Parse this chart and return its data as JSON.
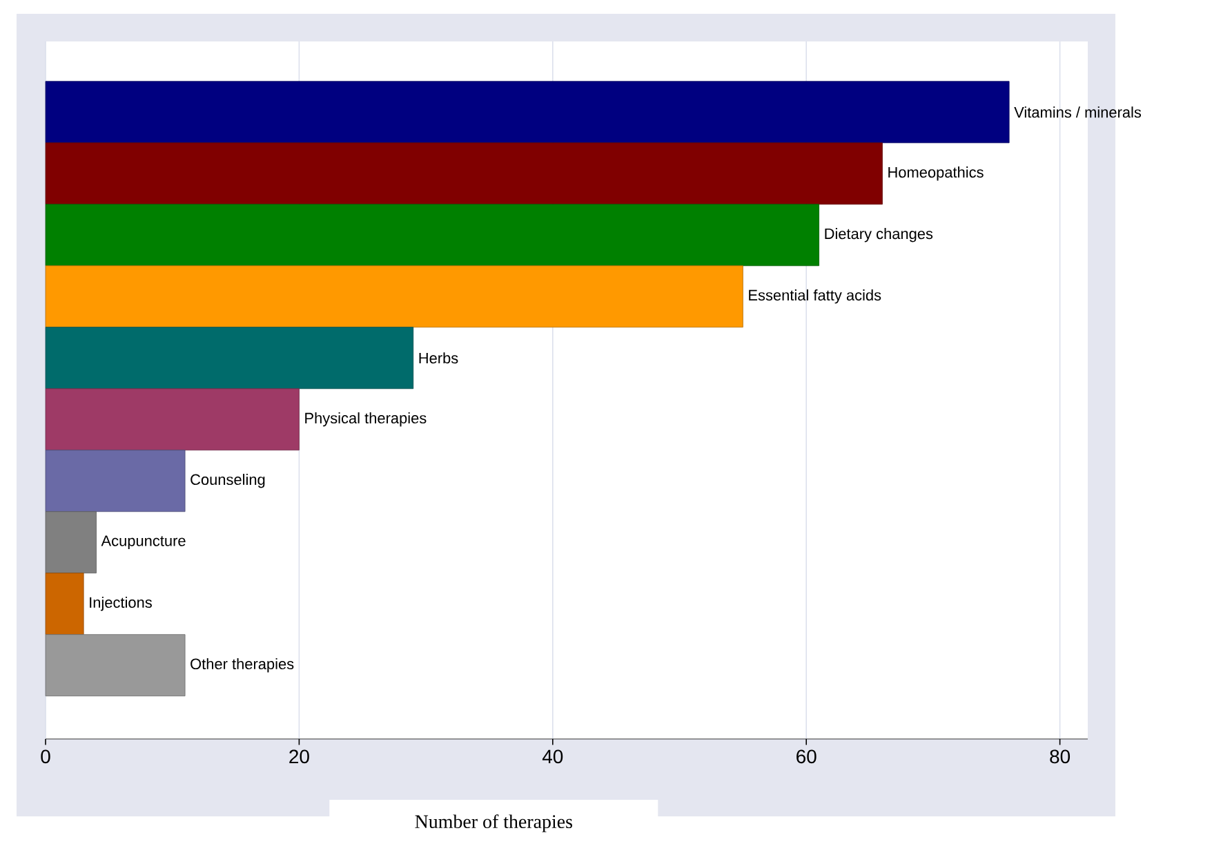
{
  "chart_data": {
    "type": "bar",
    "orientation": "horizontal",
    "xlabel": "Number of therapies",
    "categories": [
      "Vitamins / minerals",
      "Homeopathics",
      "Dietary changes",
      "Essential fatty acids",
      "Herbs",
      "Physical therapies",
      "Counseling",
      "Acupuncture",
      "Injections",
      "Other therapies"
    ],
    "values": [
      76,
      66,
      61,
      55,
      29,
      20,
      11,
      4,
      3,
      11
    ],
    "colors": [
      "#000080",
      "#800000",
      "#008000",
      "#ff9900",
      "#006b6b",
      "#9e3a66",
      "#6a6aa6",
      "#808080",
      "#cc6600",
      "#999999"
    ],
    "xlim": [
      0,
      82.2
    ],
    "xticks": [
      0,
      20,
      40,
      60,
      80
    ],
    "grid": "x"
  }
}
